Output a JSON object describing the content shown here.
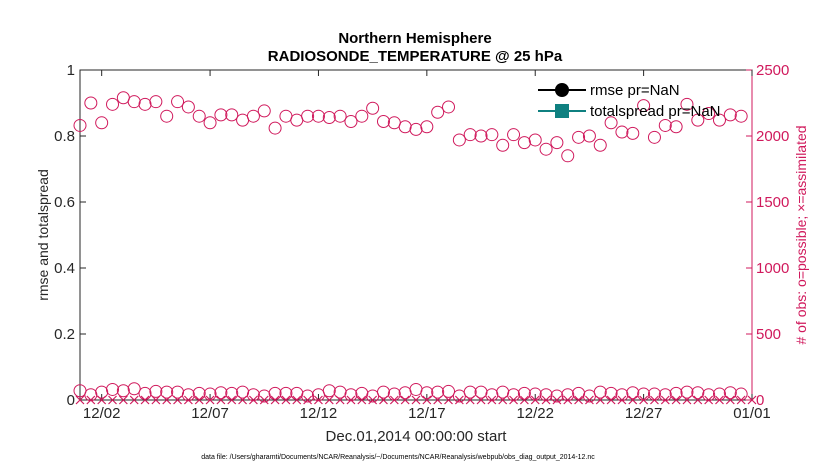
{
  "chart_data": {
    "type": "line",
    "title": "Northern Hemisphere",
    "subtitle": "RADIOSONDE_TEMPERATURE @ 25 hPa",
    "xlabel": "Dec.01,2014 00:00:00 start",
    "ylabel_left": "rmse and totalspread",
    "ylabel_right": "# of obs: o=possible; ×=assimilated",
    "xlim": [
      0,
      31
    ],
    "ylim_left": [
      0,
      1
    ],
    "ylim_right": [
      0,
      2500
    ],
    "x_ticks": [
      {
        "value": 1,
        "label": "12/02"
      },
      {
        "value": 6,
        "label": "12/07"
      },
      {
        "value": 11,
        "label": "12/12"
      },
      {
        "value": 16,
        "label": "12/17"
      },
      {
        "value": 21,
        "label": "12/22"
      },
      {
        "value": 26,
        "label": "12/27"
      },
      {
        "value": 31,
        "label": "01/01"
      }
    ],
    "y_ticks_left": [
      "0",
      "0.2",
      "0.4",
      "0.6",
      "0.8",
      "1"
    ],
    "y_ticks_right": [
      "0",
      "500",
      "1000",
      "1500",
      "2000",
      "2500"
    ],
    "legend": [
      {
        "label": "rmse pr=NaN",
        "color": "#000000"
      },
      {
        "label": "totalspread pr=NaN",
        "color": "#0f8080"
      }
    ],
    "series": [
      {
        "name": "possible obs (upper group)",
        "marker": "circle",
        "color": "#d0195c",
        "axis": "right",
        "x": [
          0.0,
          0.5,
          1.0,
          1.5,
          2.0,
          2.5,
          3.0,
          3.5,
          4.0,
          4.5,
          5.0,
          5.5,
          6.0,
          6.5,
          7.0,
          7.5,
          8.0,
          8.5,
          9.0,
          9.5,
          10.0,
          10.5,
          11.0,
          11.5,
          12.0,
          12.5,
          13.0,
          13.5,
          14.0,
          14.5,
          15.0,
          15.5,
          16.0,
          16.5,
          17.0,
          17.5,
          18.0,
          18.5,
          19.0,
          19.5,
          20.0,
          20.5,
          21.0,
          21.5,
          22.0,
          22.5,
          23.0,
          23.5,
          24.0,
          24.5,
          25.0,
          25.5,
          26.0,
          26.5,
          27.0,
          27.5,
          28.0,
          28.5,
          29.0,
          29.5,
          30.0,
          30.5
        ],
        "y": [
          2080,
          2250,
          2100,
          2240,
          2290,
          2260,
          2240,
          2260,
          2150,
          2260,
          2220,
          2150,
          2100,
          2160,
          2160,
          2120,
          2150,
          2190,
          2060,
          2150,
          2120,
          2150,
          2150,
          2140,
          2150,
          2110,
          2150,
          2210,
          2110,
          2100,
          2070,
          2050,
          2070,
          2180,
          2220,
          1970,
          2010,
          2000,
          2010,
          1930,
          2010,
          1950,
          1970,
          1900,
          1950,
          1850,
          1990,
          2000,
          1930,
          2100,
          2030,
          2020,
          2230,
          1990,
          2080,
          2070,
          2240,
          2120,
          2170,
          2120,
          2160,
          2150
        ]
      },
      {
        "name": "possible obs (lower group)",
        "marker": "circle",
        "color": "#d0195c",
        "axis": "right",
        "x": [
          0.0,
          0.5,
          1.0,
          1.5,
          2.0,
          2.5,
          3.0,
          3.5,
          4.0,
          4.5,
          5.0,
          5.5,
          6.0,
          6.5,
          7.0,
          7.5,
          8.0,
          8.5,
          9.0,
          9.5,
          10.0,
          10.5,
          11.0,
          11.5,
          12.0,
          12.5,
          13.0,
          13.5,
          14.0,
          14.5,
          15.0,
          15.5,
          16.0,
          16.5,
          17.0,
          17.5,
          18.0,
          18.5,
          19.0,
          19.5,
          20.0,
          20.5,
          21.0,
          21.5,
          22.0,
          22.5,
          23.0,
          23.5,
          24.0,
          24.5,
          25.0,
          25.5,
          26.0,
          26.5,
          27.0,
          27.5,
          28.0,
          28.5,
          29.0,
          29.5,
          30.0,
          30.5
        ],
        "y": [
          70,
          40,
          60,
          80,
          70,
          85,
          50,
          65,
          60,
          60,
          40,
          50,
          45,
          55,
          50,
          60,
          40,
          30,
          50,
          50,
          50,
          30,
          40,
          70,
          60,
          40,
          50,
          30,
          60,
          45,
          55,
          80,
          55,
          60,
          65,
          30,
          60,
          60,
          40,
          60,
          40,
          50,
          45,
          40,
          30,
          40,
          50,
          30,
          60,
          50,
          40,
          55,
          45,
          45,
          40,
          50,
          60,
          55,
          40,
          45,
          55,
          45
        ]
      },
      {
        "name": "assimilated obs",
        "marker": "x",
        "color": "#d0195c",
        "axis": "right",
        "x": [
          0.0,
          0.5,
          1.0,
          1.5,
          2.0,
          2.5,
          3.0,
          3.5,
          4.0,
          4.5,
          5.0,
          5.5,
          6.0,
          6.5,
          7.0,
          7.5,
          8.0,
          8.5,
          9.0,
          9.5,
          10.0,
          10.5,
          11.0,
          11.5,
          12.0,
          12.5,
          13.0,
          13.5,
          14.0,
          14.5,
          15.0,
          15.5,
          16.0,
          16.5,
          17.0,
          17.5,
          18.0,
          18.5,
          19.0,
          19.5,
          20.0,
          20.5,
          21.0,
          21.5,
          22.0,
          22.5,
          23.0,
          23.5,
          24.0,
          24.5,
          25.0,
          25.5,
          26.0,
          26.5,
          27.0,
          27.5,
          28.0,
          28.5,
          29.0,
          29.5,
          30.0,
          30.5,
          31.0
        ],
        "y": [
          0,
          0,
          0,
          0,
          0,
          0,
          0,
          0,
          0,
          0,
          0,
          0,
          0,
          0,
          0,
          0,
          0,
          0,
          0,
          0,
          0,
          0,
          0,
          0,
          0,
          0,
          0,
          0,
          0,
          0,
          0,
          0,
          0,
          0,
          0,
          0,
          0,
          0,
          0,
          0,
          0,
          0,
          0,
          0,
          0,
          0,
          0,
          0,
          0,
          0,
          0,
          0,
          0,
          0,
          0,
          0,
          0,
          0,
          0,
          0,
          0,
          0,
          0
        ]
      },
      {
        "name": "rmse pr=NaN",
        "marker": "circle-filled",
        "color": "#000000",
        "axis": "left",
        "x": [],
        "y": []
      },
      {
        "name": "totalspread pr=NaN",
        "marker": "square-filled",
        "color": "#0f8080",
        "axis": "left",
        "x": [],
        "y": []
      }
    ]
  },
  "footnote": "data file: /Users/gharamti/Documents/NCAR/Reanalysis/~/Documents/NCAR/Reanalysis/webpub/obs_diag_output_2014-12.nc"
}
